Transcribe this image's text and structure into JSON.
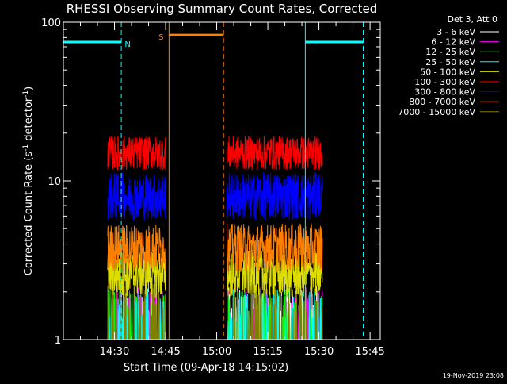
{
  "chart_data": {
    "type": "line",
    "title": "RHESSI Observing Summary Count Rates, Corrected",
    "xlabel": "Start Time (09-Apr-18 14:15:02)",
    "ylabel": "Corrected Count Rate (s",
    "ylabel_sup": "-1",
    "ylabel_mid": " detector",
    "ylabel_end": ")",
    "y_scale": "log",
    "ylim": [
      1,
      100
    ],
    "xlim_minutes_after_start": [
      0,
      93
    ],
    "x_tick_labels": [
      "14:30",
      "14:45",
      "15:00",
      "15:15",
      "15:30",
      "15:45"
    ],
    "x_tick_minutes": [
      15,
      30,
      45,
      60,
      75,
      90
    ],
    "y_tick_labels": [
      "1",
      "10",
      "100"
    ],
    "y_tick_values": [
      1,
      10,
      100
    ],
    "legend_title": "Det 3, Att 0",
    "legend_placement": "right",
    "series": [
      {
        "name": "3 - 6 keV",
        "color": "#ffffff",
        "level": 1.4
      },
      {
        "name": "6 - 12 keV",
        "color": "#ff00ff",
        "level": 1.4
      },
      {
        "name": "12 - 25 keV",
        "color": "#00ff00",
        "level": 1.3
      },
      {
        "name": "25 - 50 keV",
        "color": "#00ffff",
        "level": 1.3
      },
      {
        "name": "50 - 100 keV",
        "color": "#dddd00",
        "level": 2.6
      },
      {
        "name": "100 - 300 keV",
        "color": "#ff0000",
        "level": 15
      },
      {
        "name": "300 - 800 keV",
        "color": "#0000ff",
        "level": 8
      },
      {
        "name": "800 - 7000 keV",
        "color": "#ff8000",
        "level": 3.8
      },
      {
        "name": "7000 - 15000 keV",
        "color": "#808000",
        "level": 1.5
      }
    ],
    "data_intervals_minutes": [
      [
        13,
        30
      ],
      [
        48,
        76
      ]
    ],
    "annotations": [
      {
        "label": "N",
        "color": "#00ffff",
        "kind": "night",
        "bar_y": 75,
        "start": 0,
        "end": 17,
        "dash_at": 17,
        "solid_at": 0
      },
      {
        "label": "",
        "color": "#00ffff",
        "kind": "night",
        "bar_y": 75,
        "start": 71,
        "end": 88,
        "dash_at": 88,
        "solid_at": 71
      },
      {
        "label": "S",
        "color": "#ff8000",
        "kind": "saa",
        "bar_y": 83,
        "start": 31,
        "end": 47,
        "dash_at": 47,
        "solid_at": 31
      }
    ],
    "footer_date": "19-Nov-2019 23:08"
  }
}
